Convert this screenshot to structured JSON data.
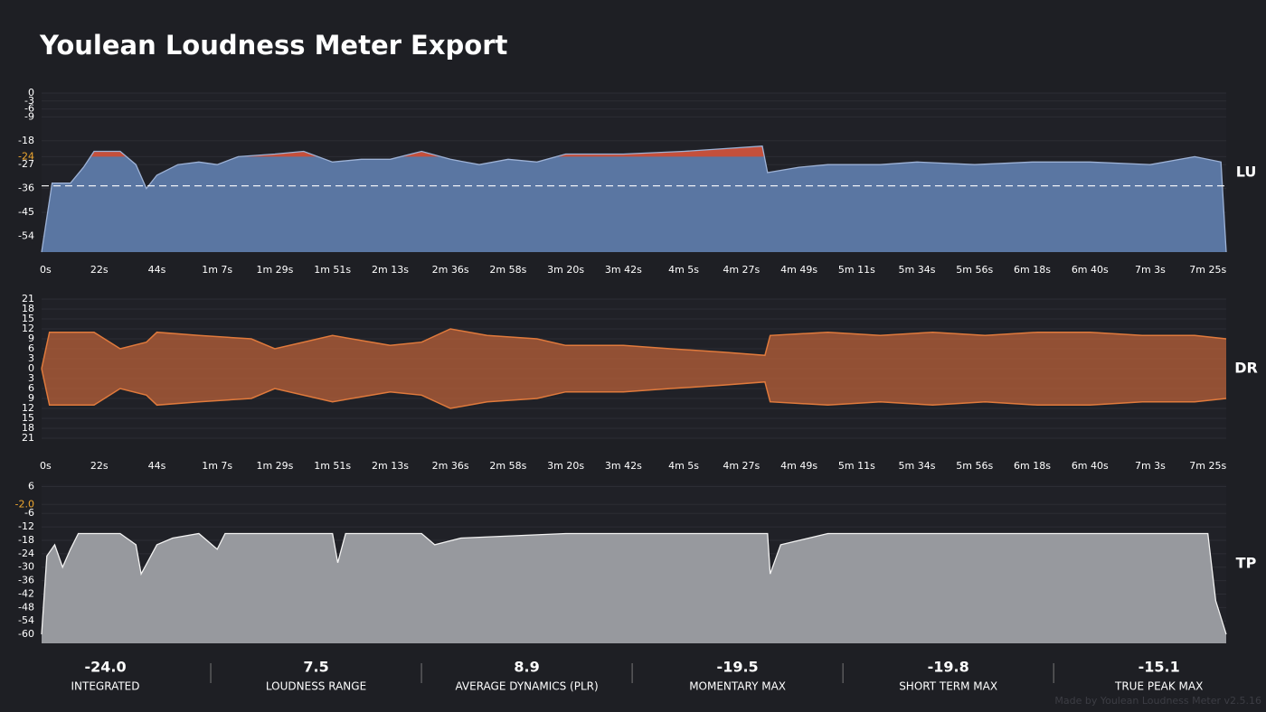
{
  "title": "Youlean Loudness Meter Export",
  "chart_data": [
    {
      "type": "area",
      "side_label": "LU",
      "color": "#5a76a2",
      "line_color": "#9db2d6",
      "above_target_color": "#c4503c",
      "target": -24,
      "target_color": "#f0a830",
      "reference": -35,
      "xlim": [
        0,
        452
      ],
      "ylim": [
        -60,
        0
      ],
      "yticks": [
        0,
        -3,
        -6,
        -9,
        -18,
        -24,
        -27,
        -36,
        -45,
        -54
      ],
      "xticks": [
        {
          "value": 0,
          "label": "0s"
        },
        {
          "value": 22,
          "label": "22s"
        },
        {
          "value": 44,
          "label": "44s"
        },
        {
          "value": 67,
          "label": "1m 7s"
        },
        {
          "value": 89,
          "label": "1m 29s"
        },
        {
          "value": 111,
          "label": "1m 51s"
        },
        {
          "value": 133,
          "label": "2m 13s"
        },
        {
          "value": 156,
          "label": "2m 36s"
        },
        {
          "value": 178,
          "label": "2m 58s"
        },
        {
          "value": 200,
          "label": "3m 20s"
        },
        {
          "value": 222,
          "label": "3m 42s"
        },
        {
          "value": 245,
          "label": "4m 5s"
        },
        {
          "value": 267,
          "label": "4m 27s"
        },
        {
          "value": 289,
          "label": "4m 49s"
        },
        {
          "value": 311,
          "label": "5m 11s"
        },
        {
          "value": 334,
          "label": "5m 34s"
        },
        {
          "value": 356,
          "label": "5m 56s"
        },
        {
          "value": 378,
          "label": "6m 18s"
        },
        {
          "value": 400,
          "label": "6m 40s"
        },
        {
          "value": 423,
          "label": "7m 3s"
        },
        {
          "value": 445,
          "label": "7m 25s"
        }
      ],
      "x": [
        0,
        4,
        11,
        16,
        20,
        30,
        36,
        40,
        44,
        52,
        60,
        67,
        75,
        89,
        100,
        111,
        122,
        133,
        145,
        156,
        167,
        178,
        189,
        200,
        222,
        245,
        260,
        275,
        277,
        289,
        300,
        320,
        334,
        356,
        378,
        400,
        423,
        440,
        450,
        452
      ],
      "values": [
        -60,
        -34,
        -34,
        -28,
        -22,
        -22,
        -27,
        -36,
        -31,
        -27,
        -26,
        -27,
        -24,
        -23,
        -22,
        -26,
        -25,
        -25,
        -22,
        -25,
        -27,
        -25,
        -26,
        -23,
        -23,
        -22,
        -21,
        -20,
        -30,
        -28,
        -27,
        -27,
        -26,
        -27,
        -26,
        -26,
        -27,
        -24,
        -26,
        -60
      ]
    },
    {
      "type": "area",
      "mirror": true,
      "side_label": "DR",
      "color": "#b8603a",
      "line_color": "#e07a3c",
      "xlim": [
        0,
        452
      ],
      "ylim": [
        -21,
        21
      ],
      "yticks": [
        21,
        18,
        15,
        12,
        9,
        6,
        3,
        0,
        {
          "value": -3,
          "label": "3"
        },
        {
          "value": -6,
          "label": "6"
        },
        {
          "value": -9,
          "label": "9"
        },
        {
          "value": -12,
          "label": "12"
        },
        {
          "value": -15,
          "label": "15"
        },
        {
          "value": -18,
          "label": "18"
        },
        {
          "value": -21,
          "label": "21"
        }
      ],
      "xticks": [
        {
          "value": 0,
          "label": "0s"
        },
        {
          "value": 22,
          "label": "22s"
        },
        {
          "value": 44,
          "label": "44s"
        },
        {
          "value": 67,
          "label": "1m 7s"
        },
        {
          "value": 89,
          "label": "1m 29s"
        },
        {
          "value": 111,
          "label": "1m 51s"
        },
        {
          "value": 133,
          "label": "2m 13s"
        },
        {
          "value": 156,
          "label": "2m 36s"
        },
        {
          "value": 178,
          "label": "2m 58s"
        },
        {
          "value": 200,
          "label": "3m 20s"
        },
        {
          "value": 222,
          "label": "3m 42s"
        },
        {
          "value": 245,
          "label": "4m 5s"
        },
        {
          "value": 267,
          "label": "4m 27s"
        },
        {
          "value": 289,
          "label": "4m 49s"
        },
        {
          "value": 311,
          "label": "5m 11s"
        },
        {
          "value": 334,
          "label": "5m 34s"
        },
        {
          "value": 356,
          "label": "5m 56s"
        },
        {
          "value": 378,
          "label": "6m 18s"
        },
        {
          "value": 400,
          "label": "6m 40s"
        },
        {
          "value": 423,
          "label": "7m 3s"
        },
        {
          "value": 445,
          "label": "7m 25s"
        }
      ],
      "x": [
        0,
        3,
        20,
        30,
        40,
        44,
        60,
        80,
        89,
        111,
        133,
        145,
        156,
        170,
        189,
        200,
        222,
        240,
        260,
        276,
        278,
        300,
        320,
        340,
        360,
        380,
        400,
        420,
        440,
        452
      ],
      "values": [
        0,
        11,
        11,
        6,
        8,
        11,
        10,
        9,
        6,
        10,
        7,
        8,
        12,
        10,
        9,
        7,
        7,
        6,
        5,
        4,
        10,
        11,
        10,
        11,
        10,
        11,
        11,
        10,
        10,
        9
      ]
    },
    {
      "type": "area",
      "side_label": "TP",
      "color": "#97999e",
      "line_color": "#f2f2f2",
      "target": -2,
      "target_color": "#f0a830",
      "xlim": [
        0,
        452
      ],
      "ylim": [
        -64,
        7
      ],
      "yticks": [
        6,
        {
          "value": -2,
          "label": "-2.0"
        },
        -6,
        -12,
        -18,
        -24,
        -30,
        -36,
        -42,
        -48,
        -54,
        -60
      ],
      "x": [
        0,
        2,
        5,
        8,
        11,
        14,
        30,
        36,
        38,
        44,
        50,
        60,
        67,
        70,
        111,
        113,
        116,
        145,
        150,
        160,
        200,
        277,
        278,
        282,
        300,
        445,
        448,
        452
      ],
      "values": [
        -60,
        -25,
        -20,
        -30,
        -22,
        -15,
        -15,
        -20,
        -33,
        -20,
        -17,
        -15,
        -22,
        -15,
        -15,
        -28,
        -15,
        -15,
        -20,
        -17,
        -15,
        -15,
        -33,
        -20,
        -15,
        -15,
        -45,
        -60
      ]
    }
  ],
  "stats": [
    {
      "value": "-24.0",
      "label": "INTEGRATED"
    },
    {
      "value": "7.5",
      "label": "LOUDNESS RANGE"
    },
    {
      "value": "8.9",
      "label": "AVERAGE DYNAMICS (PLR)"
    },
    {
      "value": "-19.5",
      "label": "MOMENTARY MAX"
    },
    {
      "value": "-19.8",
      "label": "SHORT TERM MAX"
    },
    {
      "value": "-15.1",
      "label": "TRUE PEAK MAX"
    }
  ],
  "footer": "Made by Youlean Loudness Meter v2.5.16"
}
